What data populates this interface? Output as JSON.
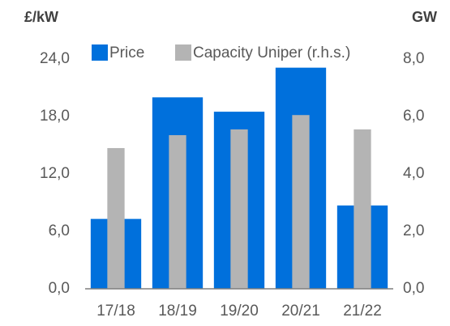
{
  "chart_data": {
    "type": "bar",
    "y_label": "£/kW",
    "y2_label": "GW",
    "categories": [
      "17/18",
      "18/19",
      "19/20",
      "20/21",
      "21/22"
    ],
    "series": [
      {
        "name": "Price",
        "color": "#0070dc",
        "values": [
          7.3,
          20.0,
          18.5,
          23.1,
          8.7
        ]
      },
      {
        "name": "Capacity Uniper (r.h.s.)",
        "color": "#b4b4b4",
        "axis": "y2",
        "values": [
          4.9,
          5.35,
          5.55,
          6.05,
          5.55
        ]
      }
    ],
    "ylim": [
      0,
      24
    ],
    "yticks": [
      {
        "value": 0,
        "label": "0,0"
      },
      {
        "value": 6,
        "label": "6,0"
      },
      {
        "value": 12,
        "label": "12,0"
      },
      {
        "value": 18,
        "label": "18,0"
      },
      {
        "value": 24,
        "label": "24,0"
      }
    ],
    "y2lim": [
      0,
      8
    ],
    "y2ticks": [
      {
        "value": 0,
        "label": "0,0"
      },
      {
        "value": 2,
        "label": "2,0"
      },
      {
        "value": 4,
        "label": "4,0"
      },
      {
        "value": 6,
        "label": "6,0"
      },
      {
        "value": 8,
        "label": "8,0"
      }
    ],
    "grid": false
  }
}
